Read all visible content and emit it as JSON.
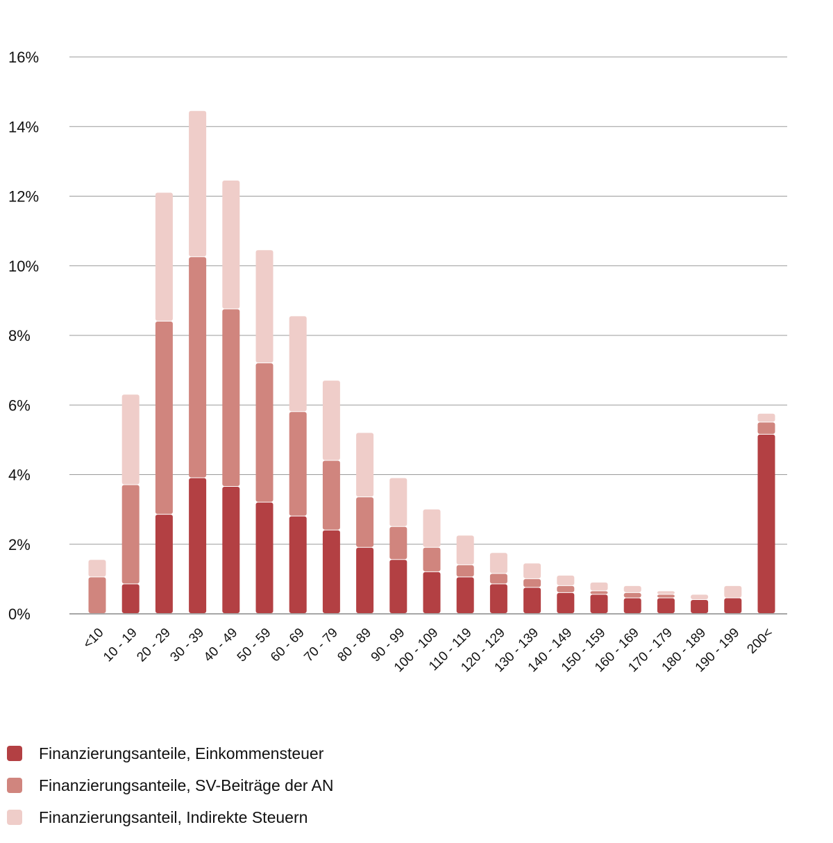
{
  "chart_data": {
    "type": "bar",
    "stacked": true,
    "categories": [
      "<10",
      "10 - 19",
      "20 - 29",
      "30 - 39",
      "40 - 49",
      "50 - 59",
      "60 - 69",
      "70 - 79",
      "80 - 89",
      "90 - 99",
      "100 - 109",
      "110 - 119",
      "120 - 129",
      "130 - 139",
      "140 - 149",
      "150 - 159",
      "160 - 169",
      "170 - 179",
      "180 - 189",
      "190 - 199",
      "200<"
    ],
    "series": [
      {
        "name": "Finanzierungsanteile, Einkommensteuer",
        "color": "#b34043",
        "values": [
          0.0,
          0.85,
          2.85,
          3.9,
          3.65,
          3.2,
          2.8,
          2.4,
          1.9,
          1.55,
          1.2,
          1.05,
          0.85,
          0.75,
          0.6,
          0.55,
          0.45,
          0.45,
          0.4,
          0.45,
          5.15
        ]
      },
      {
        "name": "Finanzierungsanteile, SV-Beiträge der AN",
        "color": "#d0857e",
        "values": [
          1.05,
          2.85,
          5.55,
          6.35,
          5.1,
          4.0,
          3.0,
          2.0,
          1.45,
          0.95,
          0.7,
          0.35,
          0.3,
          0.25,
          0.2,
          0.1,
          0.15,
          0.1,
          0.0,
          0.0,
          0.35
        ]
      },
      {
        "name": "Finanzierungsanteil, Indirekte Steuern",
        "color": "#efcdc9",
        "values": [
          0.5,
          2.6,
          3.7,
          4.2,
          3.7,
          3.25,
          2.75,
          2.3,
          1.85,
          1.4,
          1.1,
          0.85,
          0.6,
          0.45,
          0.3,
          0.25,
          0.2,
          0.1,
          0.15,
          0.35,
          0.25
        ]
      }
    ],
    "y_ticks": [
      "0%",
      "2%",
      "4%",
      "6%",
      "8%",
      "10%",
      "12%",
      "14%",
      "16%"
    ],
    "ylim": [
      0,
      16
    ],
    "grid": true,
    "legend_position": "bottom-left"
  }
}
